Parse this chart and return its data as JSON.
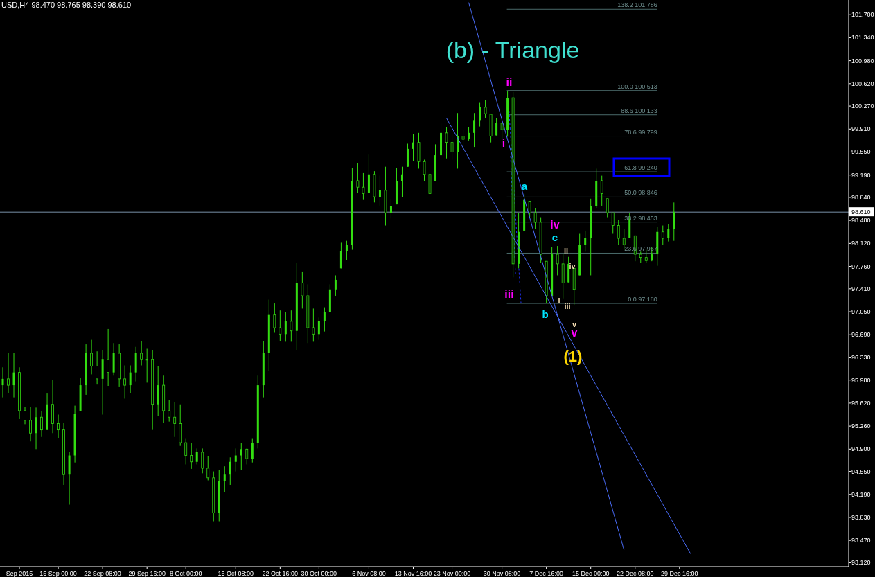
{
  "chart_data": {
    "type": "candlestick",
    "title": "USD,H4 98.470 98.765 98.390 98.610",
    "subtitle": "(b) - Triangle",
    "color": "#33dd11",
    "categories": [
      null,
      null,
      null,
      "Sep 2015",
      null,
      null,
      null,
      null,
      null,
      null,
      "15 Sep 00:00",
      null,
      null,
      null,
      null,
      null,
      null,
      null,
      "22 Sep 08:00",
      null,
      null,
      null,
      null,
      null,
      null,
      null,
      "29 Sep 16:00",
      null,
      null,
      null,
      null,
      null,
      null,
      "8 Oct 00:00",
      null,
      null,
      null,
      null,
      null,
      null,
      null,
      null,
      "15 Oct 08:00",
      null,
      null,
      null,
      null,
      null,
      null,
      null,
      "22 Oct 16:00",
      null,
      null,
      null,
      null,
      null,
      null,
      "30 Oct 00:00",
      null,
      null,
      null,
      null,
      null,
      null,
      null,
      null,
      "6 Nov 08:00",
      null,
      null,
      null,
      null,
      null,
      null,
      null,
      "13 Nov 16:00",
      null,
      null,
      null,
      null,
      null,
      null,
      "23 Nov 00:00",
      null,
      null,
      null,
      null,
      null,
      null,
      null,
      null,
      "30 Nov 08:00",
      null,
      null,
      null,
      null,
      null,
      null,
      null,
      "7 Dec 16:00",
      null,
      null,
      null,
      null,
      null,
      null,
      null,
      "15 Dec 00:00",
      null,
      null,
      null,
      null,
      null,
      null,
      null,
      "22 Dec 08:00",
      null,
      null,
      null,
      null,
      null,
      null,
      null,
      "29 Dec 16:00",
      null,
      null,
      null,
      null,
      null,
      null,
      null,
      null,
      null,
      null,
      null,
      null,
      null,
      null,
      null,
      null,
      null,
      null,
      null,
      null,
      null,
      null,
      null,
      null,
      null,
      null,
      null,
      null,
      null,
      null
    ],
    "ohlc": [
      [
        95.9,
        96.18,
        95.71,
        96.0
      ],
      [
        96.0,
        96.4,
        95.78,
        95.9
      ],
      [
        95.9,
        96.4,
        95.71,
        96.1
      ],
      [
        96.1,
        96.18,
        95.37,
        95.5
      ],
      [
        95.5,
        95.56,
        95.29,
        95.35
      ],
      [
        95.35,
        95.56,
        95.02,
        95.15
      ],
      [
        95.15,
        95.55,
        94.9,
        95.4
      ],
      [
        95.4,
        95.5,
        95.09,
        95.2
      ],
      [
        95.2,
        95.77,
        95.2,
        95.6
      ],
      [
        95.6,
        95.98,
        95.15,
        95.3
      ],
      [
        95.3,
        95.44,
        95.07,
        95.2
      ],
      [
        95.2,
        95.31,
        94.34,
        94.5
      ],
      [
        94.5,
        94.85,
        94.03,
        94.8
      ],
      [
        94.8,
        95.58,
        94.69,
        95.45
      ],
      [
        95.5,
        96.02,
        95.5,
        95.9
      ],
      [
        95.9,
        96.54,
        95.75,
        96.4
      ],
      [
        96.4,
        96.61,
        96.07,
        96.2
      ],
      [
        96.2,
        96.43,
        95.91,
        96.0
      ],
      [
        96.0,
        96.45,
        95.44,
        96.3
      ],
      [
        96.3,
        96.78,
        95.89,
        96.1
      ],
      [
        96.1,
        96.56,
        96.05,
        96.4
      ],
      [
        96.4,
        96.54,
        95.88,
        96.0
      ],
      [
        96.0,
        96.21,
        95.69,
        95.9
      ],
      [
        95.9,
        96.21,
        95.78,
        96.1
      ],
      [
        96.1,
        96.5,
        95.96,
        96.4
      ],
      [
        96.4,
        96.59,
        96.21,
        96.3
      ],
      [
        96.3,
        96.47,
        95.94,
        96.3
      ],
      [
        96.3,
        96.45,
        95.2,
        95.6
      ],
      [
        95.6,
        96.2,
        95.42,
        95.9
      ],
      [
        95.9,
        96.05,
        95.31,
        95.5
      ],
      [
        95.5,
        95.67,
        95.33,
        95.4
      ],
      [
        95.4,
        95.64,
        95.09,
        95.3
      ],
      [
        95.3,
        95.6,
        94.95,
        95.0
      ],
      [
        95.0,
        95.06,
        94.66,
        94.8
      ],
      [
        94.8,
        94.99,
        94.59,
        94.7
      ],
      [
        94.7,
        94.91,
        94.66,
        94.85
      ],
      [
        94.85,
        94.91,
        94.52,
        94.6
      ],
      [
        94.6,
        94.79,
        94.41,
        94.45
      ],
      [
        94.45,
        94.55,
        93.77,
        93.9
      ],
      [
        93.9,
        94.57,
        93.77,
        94.4
      ],
      [
        94.4,
        94.63,
        94.23,
        94.5
      ],
      [
        94.5,
        94.77,
        94.34,
        94.7
      ],
      [
        94.7,
        94.91,
        94.55,
        94.8
      ],
      [
        94.8,
        94.99,
        94.57,
        94.9
      ],
      [
        94.9,
        94.91,
        94.66,
        94.75
      ],
      [
        94.75,
        95.06,
        94.69,
        95.0
      ],
      [
        95.0,
        96.05,
        94.91,
        95.9
      ],
      [
        95.9,
        96.59,
        95.71,
        96.4
      ],
      [
        96.4,
        97.24,
        96.12,
        97.0
      ],
      [
        97.0,
        97.18,
        96.72,
        96.8
      ],
      [
        96.8,
        97.07,
        96.59,
        96.7
      ],
      [
        96.7,
        97.05,
        96.58,
        96.9
      ],
      [
        96.9,
        97.07,
        96.58,
        96.75
      ],
      [
        96.75,
        97.81,
        96.45,
        97.5
      ],
      [
        97.5,
        97.68,
        97.1,
        97.3
      ],
      [
        97.3,
        97.48,
        96.56,
        96.8
      ],
      [
        96.8,
        97.1,
        96.58,
        96.7
      ],
      [
        96.7,
        96.96,
        96.61,
        96.9
      ],
      [
        96.9,
        97.12,
        96.74,
        97.05
      ],
      [
        97.05,
        97.48,
        97.05,
        97.4
      ],
      [
        97.4,
        97.62,
        97.3,
        97.55
      ],
      [
        97.73,
        98.13,
        97.73,
        98.0
      ],
      [
        98.0,
        98.16,
        97.86,
        98.1
      ],
      [
        98.1,
        99.3,
        98.02,
        99.1
      ],
      [
        99.1,
        99.38,
        98.91,
        99.0
      ],
      [
        99.0,
        99.22,
        98.8,
        98.9
      ],
      [
        98.91,
        99.51,
        98.91,
        99.2
      ],
      [
        99.2,
        99.25,
        98.76,
        98.85
      ],
      [
        98.85,
        99.18,
        98.71,
        98.95
      ],
      [
        98.95,
        99.32,
        98.4,
        98.6
      ],
      [
        98.6,
        98.82,
        98.51,
        98.7
      ],
      [
        98.73,
        99.3,
        98.73,
        99.1
      ],
      [
        99.1,
        99.32,
        98.84,
        99.2
      ],
      [
        99.32,
        99.68,
        99.32,
        99.6
      ],
      [
        99.6,
        99.83,
        99.41,
        99.7
      ],
      [
        99.7,
        99.85,
        99.29,
        99.4
      ],
      [
        99.4,
        99.43,
        99.09,
        99.2
      ],
      [
        99.2,
        99.43,
        98.71,
        98.9
      ],
      [
        99.09,
        99.67,
        99.09,
        99.5
      ],
      [
        99.5,
        100.0,
        99.49,
        99.85
      ],
      [
        99.85,
        99.94,
        99.45,
        99.7
      ],
      [
        99.7,
        99.83,
        99.43,
        99.55
      ],
      [
        99.55,
        100.16,
        99.29,
        99.8
      ],
      [
        99.8,
        99.9,
        99.65,
        99.75
      ],
      [
        99.75,
        99.94,
        99.73,
        99.85
      ],
      [
        99.85,
        100.16,
        99.63,
        100.05
      ],
      [
        100.05,
        100.33,
        99.95,
        100.25
      ],
      [
        100.25,
        100.36,
        100.08,
        100.15
      ],
      [
        100.14,
        100.14,
        99.7,
        99.8
      ],
      [
        99.81,
        100.08,
        99.81,
        100.0
      ],
      [
        100.0,
        100.0,
        99.7,
        99.9
      ],
      [
        99.9,
        100.51,
        99.79,
        100.4
      ],
      [
        100.4,
        100.49,
        97.59,
        97.8
      ],
      [
        97.8,
        98.6,
        97.73,
        98.3
      ],
      [
        98.32,
        98.89,
        98.32,
        98.8
      ],
      [
        98.78,
        98.78,
        98.53,
        98.6
      ],
      [
        98.6,
        98.67,
        98.35,
        98.45
      ],
      [
        98.45,
        98.53,
        97.81,
        97.95
      ],
      [
        97.84,
        97.84,
        97.19,
        97.3
      ],
      [
        97.3,
        98.06,
        97.3,
        97.95
      ],
      [
        97.95,
        98.08,
        97.62,
        97.8
      ],
      [
        97.8,
        97.95,
        97.26,
        97.5
      ],
      [
        97.51,
        97.91,
        97.51,
        97.8
      ],
      [
        97.73,
        97.73,
        97.16,
        97.4
      ],
      [
        97.62,
        98.27,
        97.62,
        98.1
      ],
      [
        98.1,
        98.32,
        97.99,
        98.2
      ],
      [
        98.2,
        98.82,
        97.62,
        98.7
      ],
      [
        98.7,
        99.29,
        98.67,
        99.1
      ],
      [
        99.1,
        99.18,
        98.71,
        98.9
      ],
      [
        98.82,
        98.82,
        98.53,
        98.6
      ],
      [
        98.6,
        98.6,
        98.27,
        98.4
      ],
      [
        98.4,
        98.49,
        98.1,
        98.2
      ],
      [
        98.2,
        98.35,
        98.02,
        98.1
      ],
      [
        98.21,
        98.6,
        98.21,
        98.5
      ],
      [
        98.24,
        98.24,
        97.84,
        97.95
      ],
      [
        97.95,
        97.99,
        97.81,
        97.9
      ],
      [
        97.9,
        98.02,
        97.81,
        97.85
      ],
      [
        97.85,
        98.06,
        97.84,
        97.95
      ],
      [
        97.95,
        98.38,
        97.77,
        98.3
      ],
      [
        98.3,
        98.4,
        98.1,
        98.2
      ],
      [
        98.2,
        98.42,
        98.15,
        98.35
      ],
      [
        98.35,
        98.76,
        98.16,
        98.61
      ],
      null,
      null,
      null,
      null,
      null,
      null,
      null,
      null,
      null,
      null,
      null,
      null,
      null,
      null,
      null,
      null,
      null,
      null,
      null,
      null,
      null,
      null,
      null,
      null,
      null,
      null,
      null,
      null,
      null,
      null,
      null
    ],
    "series": [
      {
        "type": "line",
        "color": "#4a6cf7",
        "values": [
          null,
          null,
          null,
          null,
          null,
          null,
          null,
          null,
          null,
          null,
          null,
          null,
          null,
          null,
          null,
          null,
          null,
          null,
          null,
          null,
          null,
          null,
          null,
          null,
          null,
          null,
          null,
          null,
          null,
          null,
          null,
          null,
          null,
          null,
          null,
          null,
          null,
          null,
          null,
          null,
          null,
          null,
          null,
          null,
          null,
          null,
          null,
          null,
          null,
          null,
          null,
          null,
          null,
          null,
          null,
          null,
          null,
          null,
          null,
          null,
          null,
          null,
          null,
          null,
          null,
          null,
          null,
          null,
          null,
          null,
          null,
          null,
          null,
          null,
          null,
          null,
          null,
          null,
          null,
          null,
          null,
          null,
          null,
          null,
          101.89,
          null,
          null,
          null,
          null,
          null,
          null,
          null,
          null,
          null,
          null,
          null,
          null,
          null,
          null,
          null,
          null,
          null,
          null,
          null,
          null,
          null,
          null,
          null,
          null,
          null,
          null,
          null,
          93.32,
          null,
          null,
          null,
          null,
          null,
          null,
          null,
          null,
          null,
          null,
          null,
          null,
          null,
          null,
          null,
          null,
          null,
          null,
          null,
          null,
          null,
          null,
          null,
          null,
          null,
          null,
          null,
          null,
          null,
          null,
          null,
          null,
          null,
          null,
          null,
          null,
          null,
          null,
          null,
          null
        ]
      },
      {
        "type": "line",
        "color": "#4a6cf7",
        "values": [
          null,
          null,
          null,
          null,
          null,
          null,
          null,
          null,
          null,
          null,
          null,
          null,
          null,
          null,
          null,
          null,
          null,
          null,
          null,
          null,
          null,
          null,
          null,
          null,
          null,
          null,
          null,
          null,
          null,
          null,
          null,
          null,
          null,
          null,
          null,
          null,
          null,
          null,
          null,
          null,
          null,
          null,
          null,
          null,
          null,
          null,
          null,
          null,
          null,
          null,
          null,
          null,
          null,
          null,
          null,
          null,
          null,
          null,
          null,
          null,
          null,
          null,
          null,
          null,
          null,
          null,
          null,
          null,
          null,
          null,
          null,
          null,
          null,
          null,
          null,
          null,
          null,
          null,
          null,
          null,
          100.08,
          null,
          null,
          null,
          null,
          null,
          null,
          null,
          null,
          null,
          null,
          null,
          null,
          null,
          null,
          null,
          null,
          null,
          null,
          null,
          null,
          null,
          null,
          null,
          null,
          null,
          null,
          null,
          null,
          null,
          null,
          null,
          null,
          null,
          null,
          null,
          null,
          null,
          null,
          null,
          null,
          null,
          null,
          null,
          93.26,
          null,
          null,
          null,
          null,
          null,
          null,
          null,
          null,
          null,
          null,
          null,
          null,
          null,
          null,
          null,
          null,
          null,
          null,
          null,
          null,
          null,
          null,
          null,
          null,
          null,
          null,
          null,
          null
        ]
      }
    ],
    "ylim": [
      93.06,
      101.93
    ],
    "yticks": [
      {
        "value": 101.7,
        "label": "101.700"
      },
      {
        "value": 101.34,
        "label": "101.340"
      },
      {
        "value": 100.98,
        "label": "100.980"
      },
      {
        "value": 100.62,
        "label": "100.620"
      },
      {
        "value": 100.27,
        "label": "100.270"
      },
      {
        "value": 99.91,
        "label": "99.910"
      },
      {
        "value": 99.55,
        "label": "99.550"
      },
      {
        "value": 99.19,
        "label": "99.190"
      },
      {
        "value": 98.84,
        "label": "98.840"
      },
      {
        "value": 98.48,
        "label": "98.480"
      },
      {
        "value": 98.12,
        "label": "98.120"
      },
      {
        "value": 97.76,
        "label": "97.760"
      },
      {
        "value": 97.41,
        "label": "97.410"
      },
      {
        "value": 97.05,
        "label": "97.050"
      },
      {
        "value": 96.69,
        "label": "96.690"
      },
      {
        "value": 96.33,
        "label": "96.330"
      },
      {
        "value": 95.98,
        "label": "95.980"
      },
      {
        "value": 95.62,
        "label": "95.620"
      },
      {
        "value": 95.26,
        "label": "95.260"
      },
      {
        "value": 94.9,
        "label": "94.900"
      },
      {
        "value": 94.55,
        "label": "94.550"
      },
      {
        "value": 94.19,
        "label": "94.190"
      },
      {
        "value": 93.83,
        "label": "93.830"
      },
      {
        "value": 93.47,
        "label": "93.470"
      },
      {
        "value": 93.12,
        "label": "93.120"
      }
    ],
    "ref_lines": [
      {
        "axis": "y",
        "value": 98.61,
        "label": "98.610",
        "color": "#7890a8"
      },
      {
        "axis": "y",
        "value": 101.786,
        "label": "138.2 101.786",
        "color": "#4a6a6a"
      },
      {
        "axis": "y",
        "value": 100.513,
        "label": "100.0 100.513",
        "color": "#4a6a6a"
      },
      {
        "axis": "y",
        "value": 100.133,
        "label": "88.6 100.133",
        "color": "#4a6a6a"
      },
      {
        "axis": "y",
        "value": 99.799,
        "label": "78.6 99.799",
        "color": "#4a6a6a"
      },
      {
        "axis": "y",
        "value": 99.24,
        "label": "61.8 99.240",
        "color": "#4a6a6a"
      },
      {
        "axis": "y",
        "value": 98.846,
        "label": "50.0 98.846",
        "color": "#4a6a6a"
      },
      {
        "axis": "y",
        "value": 98.453,
        "label": "38.2 98.453",
        "color": "#4a6a6a"
      },
      {
        "axis": "y",
        "value": 97.967,
        "label": "23.6 97.967",
        "color": "#4a6a6a"
      },
      {
        "axis": "y",
        "value": 97.18,
        "label": "0.0 97.180",
        "color": "#4a6a6a"
      }
    ],
    "annotations": [
      {
        "text": "ii",
        "y": 100.51
      },
      {
        "text": "i",
        "y": 99.79
      },
      {
        "text": "iii",
        "y": 97.18
      },
      "iv",
      "v",
      "a",
      "b",
      "c",
      "(1)",
      "i",
      "ii",
      "iii",
      "iv",
      "v"
    ]
  }
}
